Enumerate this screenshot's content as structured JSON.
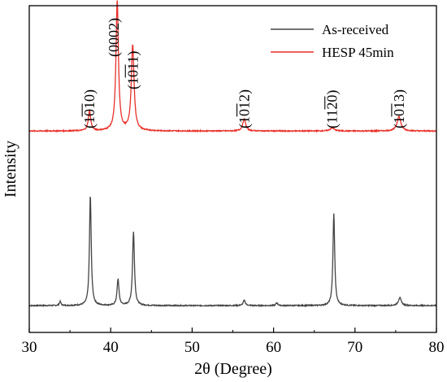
{
  "chart_data": {
    "type": "line",
    "xlabel": "2θ (Degree)",
    "ylabel": "Intensity",
    "xlim": [
      30,
      80
    ],
    "xticks": [
      30,
      40,
      50,
      60,
      70,
      80
    ],
    "grid": false,
    "legend_position": "top-right",
    "series": [
      {
        "name": "As-received",
        "color": "#444444",
        "baseline": 0,
        "noise": 0.04,
        "peaks": [
          {
            "x": 33.8,
            "height": 0.15,
            "width": 0.12
          },
          {
            "x": 37.5,
            "height": 4.2,
            "width": 0.13
          },
          {
            "x": 40.9,
            "height": 1.0,
            "width": 0.14
          },
          {
            "x": 42.8,
            "height": 2.8,
            "width": 0.14
          },
          {
            "x": 56.4,
            "height": 0.2,
            "width": 0.16
          },
          {
            "x": 60.4,
            "height": 0.1,
            "width": 0.15
          },
          {
            "x": 67.4,
            "height": 3.5,
            "width": 0.13
          },
          {
            "x": 75.5,
            "height": 0.3,
            "width": 0.22
          }
        ]
      },
      {
        "name": "HESP 45min",
        "color": "#e8302a",
        "baseline": 6.65,
        "noise": 0.04,
        "peaks": [
          {
            "x": 37.4,
            "height": 0.75,
            "width": 0.18
          },
          {
            "x": 40.8,
            "height": 4.95,
            "width": 0.18
          },
          {
            "x": 42.7,
            "height": 3.25,
            "width": 0.2
          },
          {
            "x": 56.4,
            "height": 0.45,
            "width": 0.22
          },
          {
            "x": 67.2,
            "height": 0.12,
            "width": 0.3
          },
          {
            "x": 75.4,
            "height": 0.55,
            "width": 0.28
          }
        ]
      }
    ],
    "peak_labels": [
      {
        "text": "(1010)",
        "bars": [
          2,
          4
        ],
        "x": 37.4
      },
      {
        "text": "(0002)",
        "bars": [],
        "x": 40.4
      },
      {
        "text": "(1011)",
        "bars": [
          2,
          4
        ],
        "x": 42.7
      },
      {
        "text": "(1012)",
        "bars": [
          2,
          4
        ],
        "x": 56.4
      },
      {
        "text": "(1120)",
        "bars": [
          3,
          5
        ],
        "x": 67.2
      },
      {
        "text": "(1013)",
        "bars": [
          2,
          4
        ],
        "x": 75.4
      }
    ]
  }
}
